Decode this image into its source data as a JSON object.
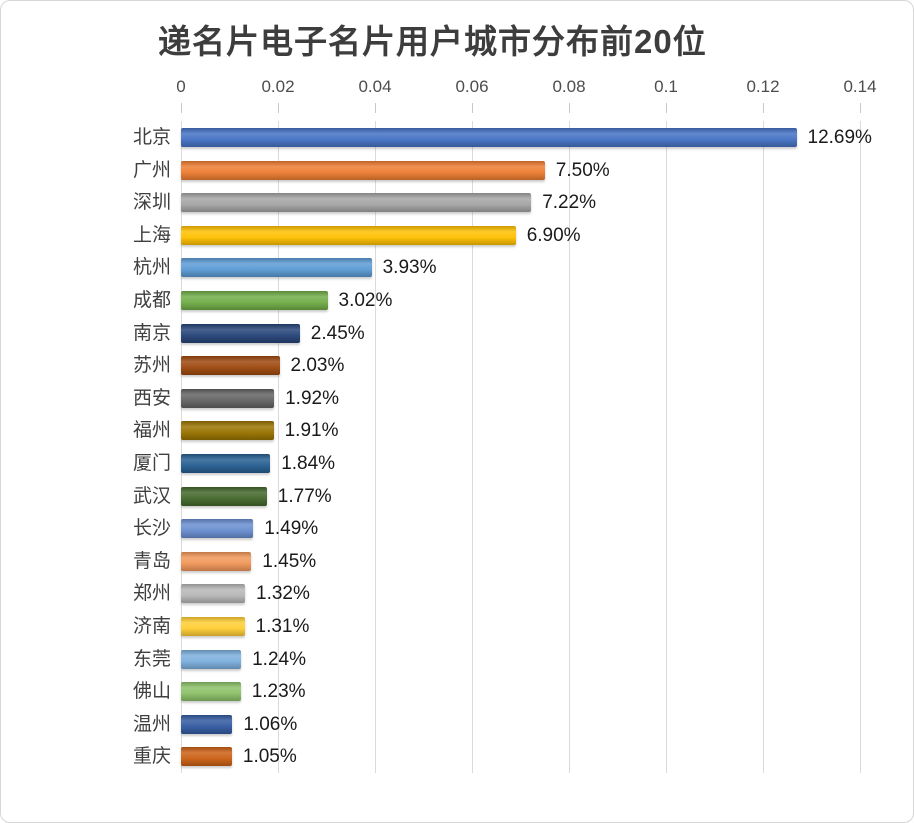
{
  "chart_data": {
    "type": "bar",
    "orientation": "horizontal",
    "title": "递名片电子名片用户城市分布前20位",
    "categories": [
      "北京",
      "广州",
      "深圳",
      "上海",
      "杭州",
      "成都",
      "南京",
      "苏州",
      "西安",
      "福州",
      "厦门",
      "武汉",
      "长沙",
      "青岛",
      "郑州",
      "济南",
      "东莞",
      "佛山",
      "温州",
      "重庆"
    ],
    "values": [
      12.69,
      7.5,
      7.22,
      6.9,
      3.93,
      3.02,
      2.45,
      2.03,
      1.92,
      1.91,
      1.84,
      1.77,
      1.49,
      1.45,
      1.32,
      1.31,
      1.24,
      1.23,
      1.06,
      1.05
    ],
    "value_labels": [
      "12.69%",
      "7.50%",
      "7.22%",
      "6.90%",
      "3.93%",
      "3.02%",
      "2.45%",
      "2.03%",
      "1.92%",
      "1.91%",
      "1.84%",
      "1.77%",
      "1.49%",
      "1.45%",
      "1.32%",
      "1.31%",
      "1.24%",
      "1.23%",
      "1.06%",
      "1.05%"
    ],
    "bar_colors": [
      "#4472C4",
      "#ED7D31",
      "#A5A5A5",
      "#FFC000",
      "#5B9BD5",
      "#70AD47",
      "#264478",
      "#9E480E",
      "#636363",
      "#997300",
      "#255E91",
      "#43682B",
      "#698ED0",
      "#F1975A",
      "#B7B7B7",
      "#FFCD33",
      "#7CAFDD",
      "#8CC168",
      "#335AA1",
      "#CB6015"
    ],
    "x_axis": {
      "position": "top",
      "tick_labels": [
        "0",
        "0.02",
        "0.04",
        "0.06",
        "0.08",
        "0.1",
        "0.12",
        "0.14"
      ],
      "min": 0,
      "max": 0.14,
      "note": "axis shows fractions; bar labels show percentages"
    },
    "grid": true,
    "legend": "none",
    "colors": {
      "title_text": "#3d3d3d",
      "axis_text": "#4d4d4d",
      "category_text": "#3f3f3f",
      "value_text": "#1a1a1a",
      "gridline": "#dadada",
      "background": "#ffffff"
    }
  }
}
